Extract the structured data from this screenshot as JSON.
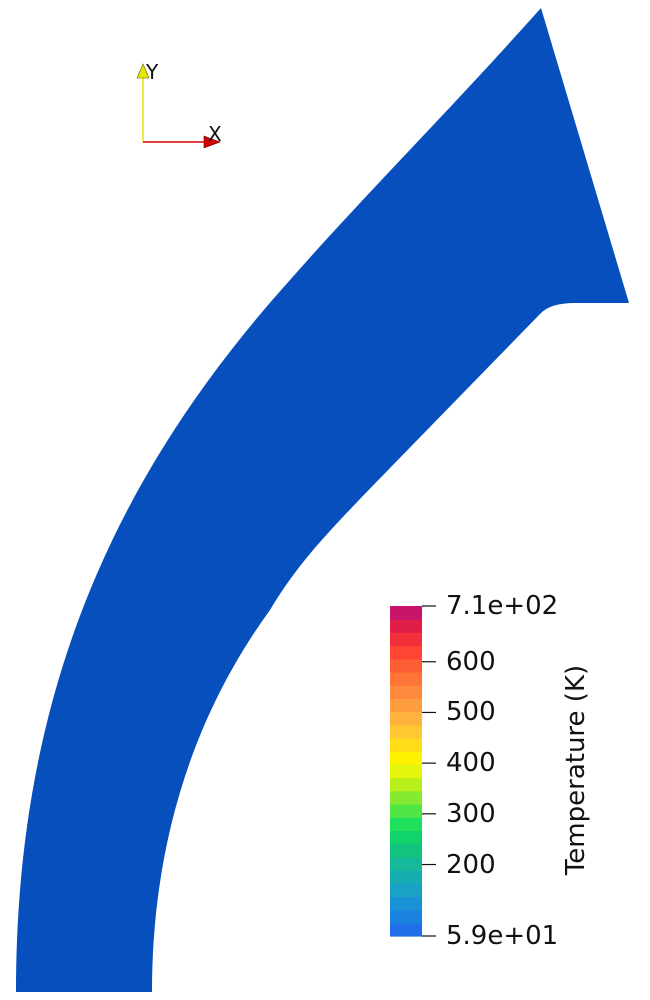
{
  "scene": {
    "background": "#ffffff",
    "geometry_color": "#064fbd",
    "geometry_name": "curved-duct-domain"
  },
  "axes_triad": {
    "x_label": "X",
    "y_label": "Y",
    "x_color": "#d40000",
    "y_color": "#e6e600"
  },
  "colorbar": {
    "title": "Temperature (K)",
    "min": 59,
    "max": 710,
    "min_label": "5.9e+01",
    "max_label": "7.1e+02",
    "ticks": [
      {
        "value": 600,
        "label": "600"
      },
      {
        "value": 500,
        "label": "500"
      },
      {
        "value": 400,
        "label": "400"
      },
      {
        "value": 300,
        "label": "300"
      },
      {
        "value": 200,
        "label": "200"
      }
    ],
    "colors_bottom_to_top": [
      "#1f6fe8",
      "#1c82e0",
      "#1a93d6",
      "#18a2c6",
      "#17adb0",
      "#16b89a",
      "#12c47e",
      "#10d36a",
      "#1ee05a",
      "#4fe646",
      "#86ea32",
      "#b8ef1c",
      "#e2f50a",
      "#fff200",
      "#ffdd18",
      "#ffc830",
      "#ffb23c",
      "#ff9e40",
      "#ff8a3e",
      "#ff7538",
      "#ff5e34",
      "#ff4634",
      "#f42f3c",
      "#e01e4a",
      "#c8146a"
    ]
  }
}
